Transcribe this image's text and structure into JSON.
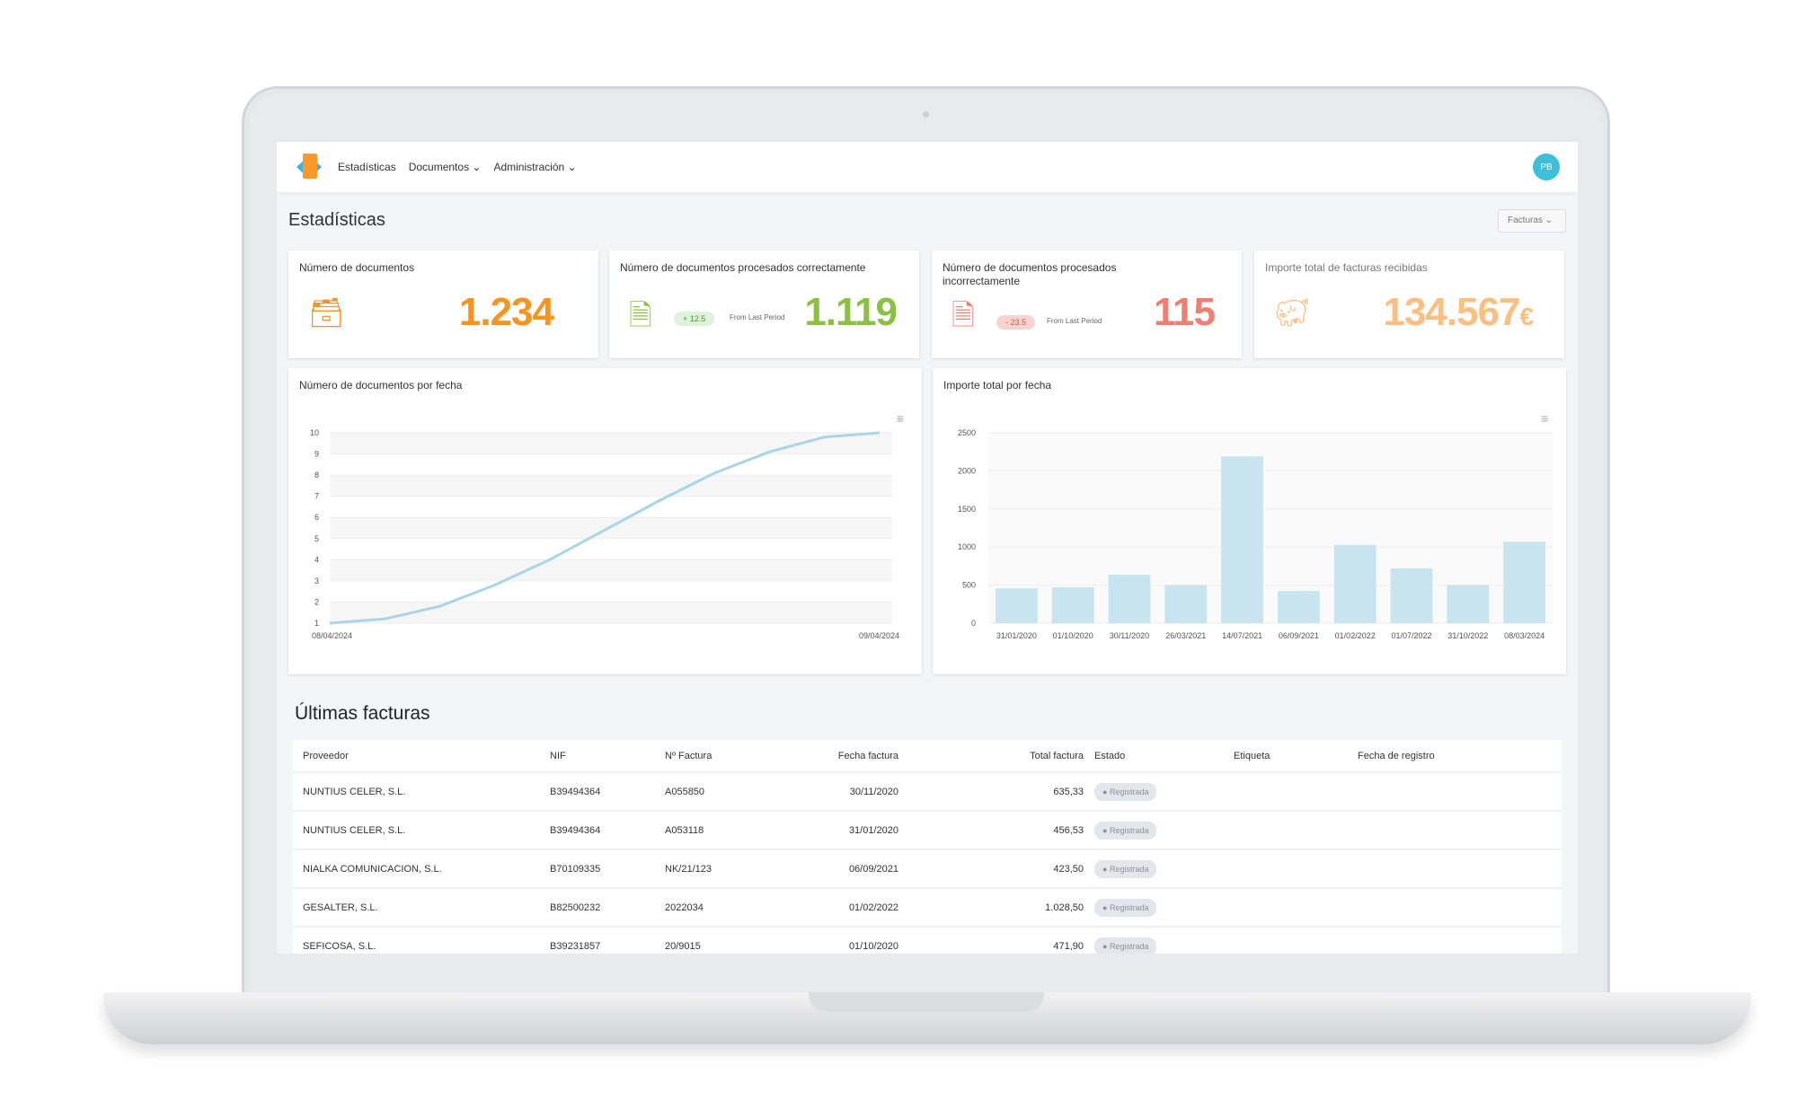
{
  "nav": {
    "items": [
      "Estadísticas",
      "Documentos ⌄",
      "Administración ⌄"
    ],
    "avatar": "PB"
  },
  "page": {
    "title": "Estadísticas",
    "filter": "Facturas ⌄"
  },
  "kpis": [
    {
      "label": "Número de documentos",
      "value": "1.234",
      "color": "#f7931e"
    },
    {
      "label": "Número de documentos procesados correctamente",
      "value": "1.119",
      "color": "#8cc043",
      "delta": "+ 12.5",
      "from": "From Last Period"
    },
    {
      "label": "Número de documentos procesados incorrectamente",
      "value": "115",
      "color": "#ef7f72",
      "delta": "- 23.5",
      "from": "From Last Period"
    },
    {
      "label": "Importe total de facturas recibidas",
      "value": "134.567",
      "currency": "€",
      "color": "#fbbf82"
    }
  ],
  "chart_data": [
    {
      "type": "line",
      "title": "Número de documentos por fecha",
      "x": [
        "08/04/2024",
        "09/04/2024"
      ],
      "ylim": [
        1,
        10
      ],
      "yticks": [
        "1",
        "2",
        "3",
        "4",
        "5",
        "6",
        "7",
        "8",
        "9",
        "10"
      ],
      "curve": [
        [
          0,
          1
        ],
        [
          0.1,
          1.2
        ],
        [
          0.2,
          1.8
        ],
        [
          0.3,
          2.8
        ],
        [
          0.4,
          4
        ],
        [
          0.5,
          5.4
        ],
        [
          0.6,
          6.8
        ],
        [
          0.7,
          8.1
        ],
        [
          0.8,
          9.1
        ],
        [
          0.9,
          9.8
        ],
        [
          1,
          10
        ]
      ],
      "color": "#a9d6e5"
    },
    {
      "type": "bar",
      "title": "Importe total por fecha",
      "categories": [
        "31/01/2020",
        "01/10/2020",
        "30/11/2020",
        "26/03/2021",
        "14/07/2021",
        "06/09/2021",
        "01/02/2022",
        "01/07/2022",
        "31/10/2022",
        "08/03/2024"
      ],
      "values": [
        456,
        471,
        635,
        500,
        2190,
        423,
        1028,
        720,
        500,
        1070
      ],
      "ylim": [
        0,
        2500
      ],
      "yticks": [
        "0",
        "500",
        "1000",
        "1500",
        "2000",
        "2500"
      ],
      "color": "#c8e4ee"
    }
  ],
  "table": {
    "title": "Últimas facturas",
    "headers": [
      "Proveedor",
      "NIF",
      "Nº Factura",
      "Fecha factura",
      "Total factura",
      "Estado",
      "Etiqueta",
      "Fecha de registro"
    ],
    "rows": [
      [
        "NUNTIUS CELER, S.L.",
        "B39494364",
        "A055850",
        "30/11/2020",
        "635,33",
        "Registrada"
      ],
      [
        "NUNTIUS CELER, S.L.",
        "B39494364",
        "A053118",
        "31/01/2020",
        "456,53",
        "Registrada"
      ],
      [
        "NIALKA COMUNICACION, S.L.",
        "B70109335",
        "NK/21/123",
        "06/09/2021",
        "423,50",
        "Registrada"
      ],
      [
        "GESALTER, S.L.",
        "B82500232",
        "2022034",
        "01/02/2022",
        "1.028,50",
        "Registrada"
      ],
      [
        "SEFICOSA, S.L.",
        "B39231857",
        "20/9015",
        "01/10/2020",
        "471,90",
        "Registrada"
      ]
    ]
  }
}
